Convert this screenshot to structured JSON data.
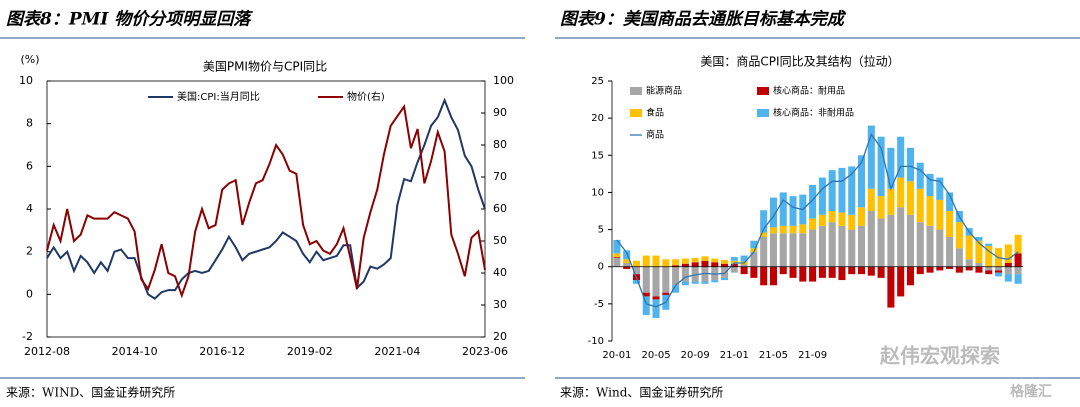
{
  "header": {
    "left_title": "图表8：PMI 物价分项明显回落",
    "right_title": "图表9：美国商品去通胀目标基本完成"
  },
  "footer": {
    "left_source": "来源：WIND、国金证券研究所",
    "right_source": "来源：Wind、国金证券研究所"
  },
  "watermark": [
    "赵伟宏观探索",
    "格隆汇"
  ],
  "chart_data": [
    {
      "type": "line",
      "title": "美国PMI物价与CPI同比",
      "y_label": "(%)",
      "categories": [
        "2012-08",
        null,
        null,
        null,
        null,
        null,
        null,
        null,
        null,
        null,
        null,
        null,
        null,
        "2014-10",
        null,
        null,
        null,
        null,
        null,
        null,
        null,
        null,
        null,
        null,
        null,
        null,
        "2016-12",
        null,
        null,
        null,
        null,
        null,
        null,
        null,
        null,
        null,
        null,
        null,
        null,
        "2019-02",
        null,
        null,
        null,
        null,
        null,
        null,
        null,
        null,
        null,
        null,
        null,
        null,
        "2021-04",
        null,
        null,
        null,
        null,
        null,
        null,
        null,
        null,
        null,
        null,
        null,
        null,
        "2023-06"
      ],
      "series": [
        {
          "name": "美国:CPI:当月同比",
          "color": "#1f3864",
          "axis": "y",
          "values": [
            1.7,
            2.2,
            1.7,
            2.0,
            1.1,
            1.8,
            1.5,
            1.0,
            1.5,
            1.1,
            2.0,
            2.1,
            1.7,
            1.7,
            0.8,
            0.0,
            -0.2,
            0.1,
            0.2,
            0.2,
            0.7,
            1.0,
            1.1,
            1.0,
            1.1,
            1.6,
            2.1,
            2.7,
            2.2,
            1.6,
            1.9,
            2.0,
            2.1,
            2.2,
            2.5,
            2.9,
            2.7,
            2.5,
            1.9,
            1.5,
            2.0,
            1.6,
            1.7,
            1.8,
            2.3,
            2.3,
            0.3,
            0.6,
            1.3,
            1.2,
            1.4,
            1.7,
            4.2,
            5.4,
            5.3,
            6.2,
            7.0,
            7.9,
            8.3,
            9.1,
            8.3,
            7.7,
            6.5,
            6.0,
            4.9,
            4.0
          ]
        },
        {
          "name": "物价(右)",
          "color": "#8b0000",
          "axis": "y2",
          "values": [
            47,
            55,
            50,
            60,
            50,
            52,
            58,
            57,
            57,
            57,
            59,
            58,
            57,
            53,
            38,
            35,
            41,
            49,
            40,
            39,
            33,
            39,
            53,
            60,
            54,
            55,
            66,
            68,
            69,
            55,
            62,
            68,
            69,
            74,
            80,
            77,
            72,
            71,
            55,
            49,
            50,
            47,
            46,
            49,
            54,
            45,
            35,
            51,
            59,
            66,
            77,
            86,
            89,
            92,
            79,
            85,
            68,
            75,
            84,
            78,
            52,
            46,
            39,
            51,
            53,
            41
          ]
        }
      ],
      "ylim": [
        -2,
        10
      ],
      "yticks": [
        -2,
        0,
        2,
        4,
        6,
        8,
        10
      ],
      "y2lim": [
        20,
        100
      ],
      "y2ticks": [
        20,
        30,
        40,
        50,
        60,
        70,
        80,
        90,
        100
      ],
      "legend": "top"
    },
    {
      "type": "bar",
      "stacked": true,
      "title": "美国：商品CPI同比及其结构（拉动）",
      "categories": [
        "20-01",
        null,
        null,
        null,
        "20-05",
        null,
        null,
        null,
        "20-09",
        null,
        null,
        null,
        "21-01",
        null,
        null,
        null,
        "21-05",
        null,
        null,
        null,
        "21-09",
        null,
        null,
        null,
        null,
        null,
        null,
        null,
        null,
        null,
        null,
        null,
        null,
        null,
        null,
        null,
        null,
        null,
        null,
        null,
        null,
        null
      ],
      "series": [
        {
          "name": "能源商品",
          "color": "#a6a6a6",
          "type": "bar",
          "values": [
            1.2,
            0.5,
            -1.0,
            -3.5,
            -4.0,
            -3.5,
            -2.5,
            -2.0,
            -2.0,
            -2.0,
            -1.8,
            -1.5,
            -0.8,
            0.3,
            2.0,
            4.0,
            4.5,
            4.5,
            4.5,
            4.5,
            5.0,
            5.5,
            6.0,
            5.5,
            5.0,
            5.5,
            7.5,
            6.5,
            7.0,
            8.0,
            7.0,
            6.0,
            5.5,
            5.0,
            4.0,
            2.5,
            1.0,
            0.5,
            -0.5,
            -0.5,
            -1.0,
            -1.0
          ]
        },
        {
          "name": "核心商品：耐用品",
          "color": "#c00000",
          "type": "bar",
          "values": [
            0.1,
            -0.3,
            -0.8,
            -0.5,
            -0.4,
            -0.3,
            0.2,
            0.4,
            0.6,
            0.8,
            0.6,
            0.4,
            0.4,
            -1.0,
            -1.5,
            -2.5,
            -2.5,
            -1.0,
            -1.5,
            -2.0,
            -2.0,
            -1.5,
            -1.5,
            -1.8,
            -1.0,
            -1.0,
            -1.2,
            -1.5,
            -5.5,
            -4.0,
            -2.5,
            -1.0,
            -0.8,
            -0.5,
            -0.3,
            -0.8,
            -0.5,
            -0.8,
            -0.5,
            -0.3,
            0.5,
            1.8
          ]
        },
        {
          "name": "食品",
          "color": "#ffc000",
          "type": "bar",
          "values": [
            0.5,
            0.5,
            0.8,
            1.5,
            1.5,
            1.0,
            0.8,
            0.7,
            0.6,
            0.6,
            0.5,
            0.5,
            0.4,
            0.4,
            0.5,
            0.6,
            0.8,
            1.0,
            1.0,
            1.2,
            1.5,
            1.5,
            1.5,
            1.8,
            2.0,
            2.5,
            3.0,
            3.0,
            3.5,
            4.0,
            4.5,
            4.5,
            4.0,
            4.0,
            3.5,
            3.5,
            3.2,
            3.0,
            2.8,
            2.5,
            2.5,
            2.5
          ]
        },
        {
          "name": "核心商品：非耐用品",
          "color": "#4fb3ee",
          "type": "bar",
          "values": [
            1.8,
            1.2,
            -0.5,
            -2.5,
            -2.5,
            -2.0,
            -1.0,
            -0.5,
            -0.3,
            -0.3,
            -0.3,
            -0.3,
            0.5,
            0.8,
            1.0,
            3.0,
            4.0,
            4.5,
            4.0,
            4.0,
            4.5,
            5.0,
            5.5,
            6.0,
            6.5,
            7.0,
            8.5,
            8.0,
            5.5,
            5.5,
            4.5,
            3.5,
            3.0,
            3.0,
            2.5,
            1.5,
            1.0,
            0.5,
            0.3,
            -0.5,
            -1.0,
            -1.3
          ]
        },
        {
          "name": "商品",
          "color": "#2e75b6",
          "type": "line",
          "values": [
            3.6,
            1.9,
            -1.5,
            -5.0,
            -5.4,
            -4.8,
            -2.5,
            -1.4,
            -1.1,
            -0.9,
            -1.0,
            -0.9,
            0.5,
            0.5,
            2.0,
            5.1,
            6.8,
            9.0,
            8.0,
            7.7,
            9.0,
            10.5,
            11.5,
            11.5,
            12.5,
            14.0,
            17.8,
            16.0,
            10.5,
            13.5,
            13.5,
            13.0,
            11.7,
            11.5,
            9.7,
            6.7,
            4.7,
            3.2,
            2.1,
            1.2,
            1.0,
            2.0
          ]
        }
      ],
      "ylim": [
        -10,
        25
      ],
      "yticks": [
        -10,
        -5,
        0,
        5,
        10,
        15,
        20,
        25
      ],
      "legend": "top-left"
    }
  ]
}
